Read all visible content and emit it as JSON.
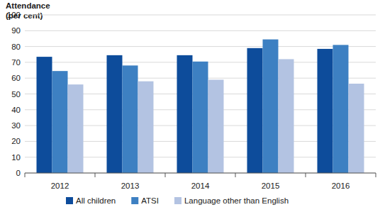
{
  "chart_data": {
    "type": "bar",
    "ylabel": "Attendance\n(per cent)",
    "categories": [
      "2012",
      "2013",
      "2014",
      "2015",
      "2016"
    ],
    "series": [
      {
        "name": "All children",
        "color": "#0d4c9b",
        "values": [
          73.5,
          74.5,
          74.5,
          79,
          78.5
        ]
      },
      {
        "name": "ATSI",
        "color": "#3d80c2",
        "values": [
          64.5,
          68,
          70.5,
          84.5,
          81
        ]
      },
      {
        "name": "Language other than English",
        "color": "#b3c3e2",
        "values": [
          56,
          58,
          59,
          72,
          56.5
        ]
      }
    ],
    "ylim": [
      0,
      100
    ],
    "yticks": [
      0,
      10,
      20,
      30,
      40,
      50,
      60,
      70,
      80,
      90,
      100
    ],
    "grid": true,
    "legend": "bottom"
  }
}
